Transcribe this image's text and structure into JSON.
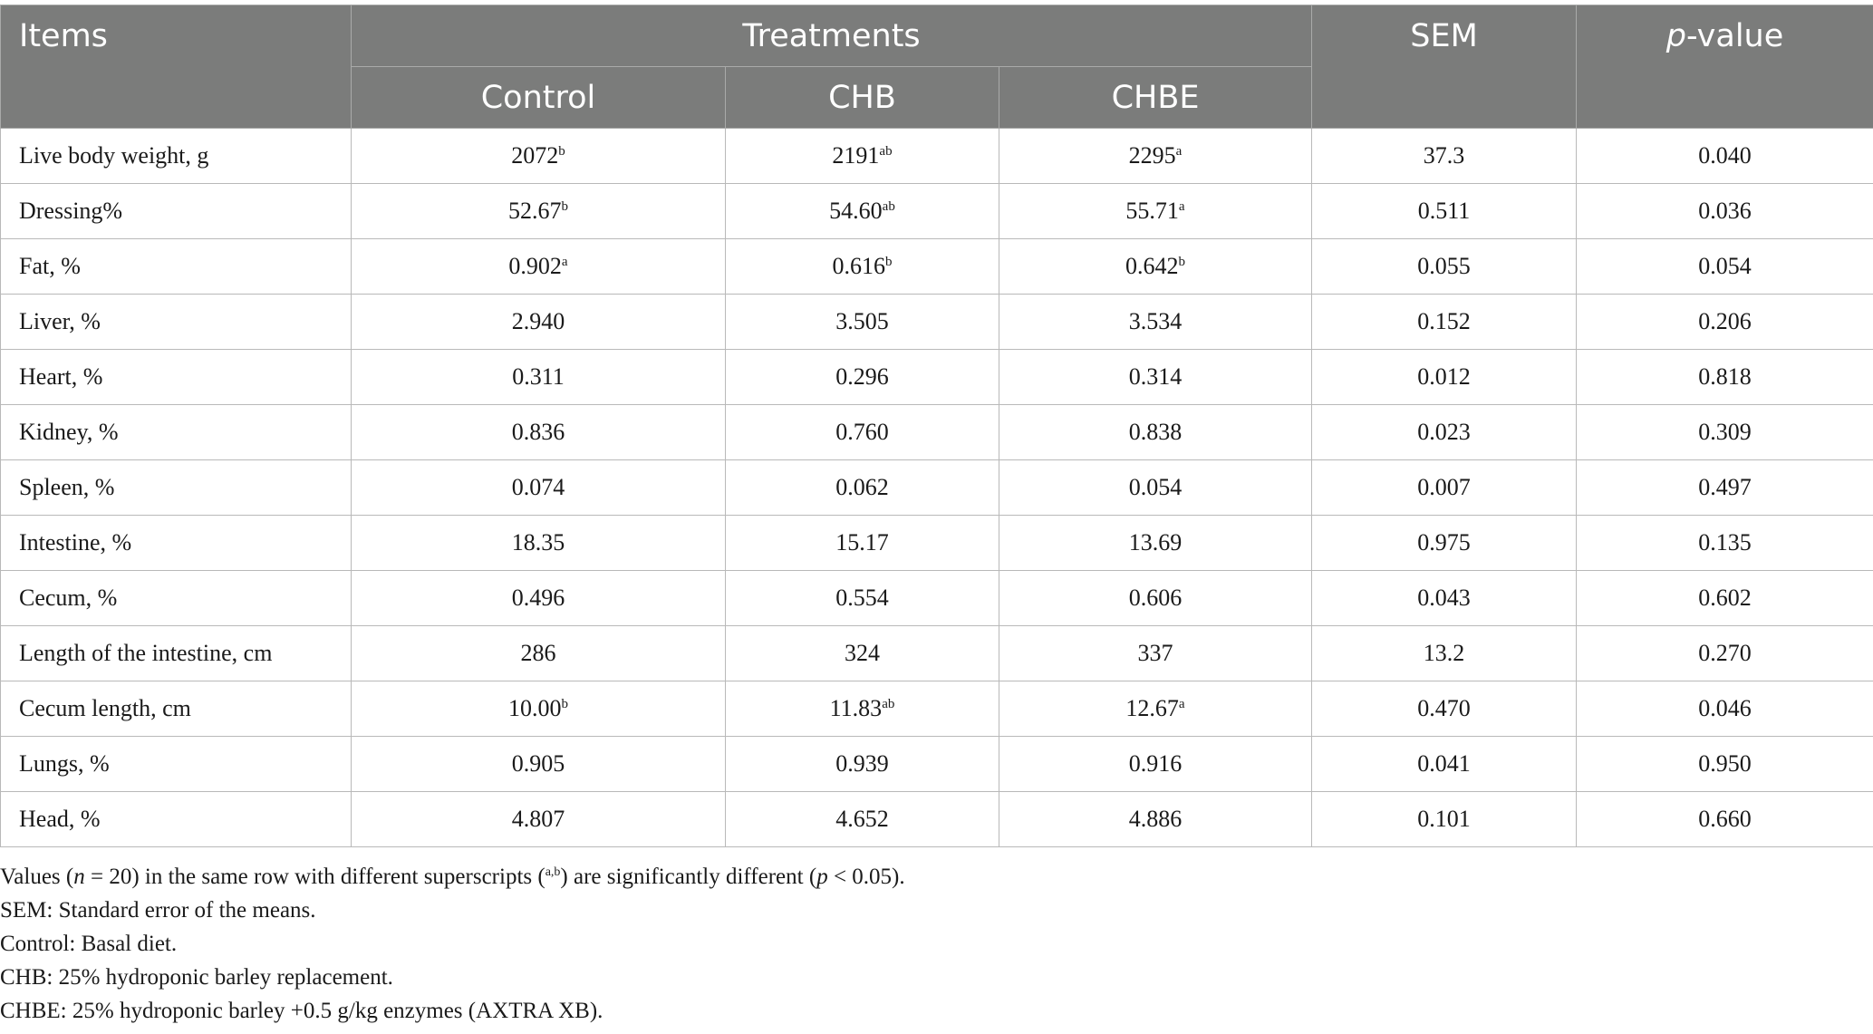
{
  "header": {
    "items": "Items",
    "treatments": "Treatments",
    "sem": "SEM",
    "pvalue_italic": "p",
    "pvalue_rest": "-value",
    "sub": [
      "Control",
      "CHB",
      "CHBE"
    ]
  },
  "rows": [
    {
      "item": "Live body weight, g",
      "control": "2072",
      "control_sup": "b",
      "chb": "2191",
      "chb_sup": "ab",
      "chbe": "2295",
      "chbe_sup": "a",
      "sem": "37.3",
      "p": "0.040"
    },
    {
      "item": "Dressing%",
      "control": "52.67",
      "control_sup": "b",
      "chb": "54.60",
      "chb_sup": "ab",
      "chbe": "55.71",
      "chbe_sup": "a",
      "sem": "0.511",
      "p": "0.036"
    },
    {
      "item": "Fat, %",
      "control": "0.902",
      "control_sup": "a",
      "chb": "0.616",
      "chb_sup": "b",
      "chbe": "0.642",
      "chbe_sup": "b",
      "sem": "0.055",
      "p": "0.054"
    },
    {
      "item": "Liver, %",
      "control": "2.940",
      "control_sup": "",
      "chb": "3.505",
      "chb_sup": "",
      "chbe": "3.534",
      "chbe_sup": "",
      "sem": "0.152",
      "p": "0.206"
    },
    {
      "item": "Heart, %",
      "control": "0.311",
      "control_sup": "",
      "chb": "0.296",
      "chb_sup": "",
      "chbe": "0.314",
      "chbe_sup": "",
      "sem": "0.012",
      "p": "0.818"
    },
    {
      "item": "Kidney, %",
      "control": "0.836",
      "control_sup": "",
      "chb": "0.760",
      "chb_sup": "",
      "chbe": "0.838",
      "chbe_sup": "",
      "sem": "0.023",
      "p": "0.309"
    },
    {
      "item": "Spleen, %",
      "control": "0.074",
      "control_sup": "",
      "chb": "0.062",
      "chb_sup": "",
      "chbe": "0.054",
      "chbe_sup": "",
      "sem": "0.007",
      "p": "0.497"
    },
    {
      "item": "Intestine, %",
      "control": "18.35",
      "control_sup": "",
      "chb": "15.17",
      "chb_sup": "",
      "chbe": "13.69",
      "chbe_sup": "",
      "sem": "0.975",
      "p": "0.135"
    },
    {
      "item": "Cecum, %",
      "control": "0.496",
      "control_sup": "",
      "chb": "0.554",
      "chb_sup": "",
      "chbe": "0.606",
      "chbe_sup": "",
      "sem": "0.043",
      "p": "0.602"
    },
    {
      "item": "Length of the intestine, cm",
      "control": "286",
      "control_sup": "",
      "chb": "324",
      "chb_sup": "",
      "chbe": "337",
      "chbe_sup": "",
      "sem": "13.2",
      "p": "0.270"
    },
    {
      "item": "Cecum length, cm",
      "control": "10.00",
      "control_sup": "b",
      "chb": "11.83",
      "chb_sup": "ab",
      "chbe": "12.67",
      "chbe_sup": "a",
      "sem": "0.470",
      "p": "0.046"
    },
    {
      "item": "Lungs, %",
      "control": "0.905",
      "control_sup": "",
      "chb": "0.939",
      "chb_sup": "",
      "chbe": "0.916",
      "chbe_sup": "",
      "sem": "0.041",
      "p": "0.950"
    },
    {
      "item": "Head, %",
      "control": "4.807",
      "control_sup": "",
      "chb": "4.652",
      "chb_sup": "",
      "chbe": "4.886",
      "chbe_sup": "",
      "sem": "0.101",
      "p": "0.660"
    }
  ],
  "footnotes": {
    "values": {
      "a": "Values (",
      "n": "n",
      "b": " = 20) in the same row with different superscripts (",
      "sup": "a,b",
      "c": ") are significantly different (",
      "p": "p",
      "d": " < 0.05)."
    },
    "sem": "SEM: Standard error of the means.",
    "control": "Control: Basal diet.",
    "chb": "CHB: 25% hydroponic barley replacement.",
    "chbe": "CHBE: 25% hydroponic barley +0.5 g/kg enzymes (AXTRA XB)."
  }
}
